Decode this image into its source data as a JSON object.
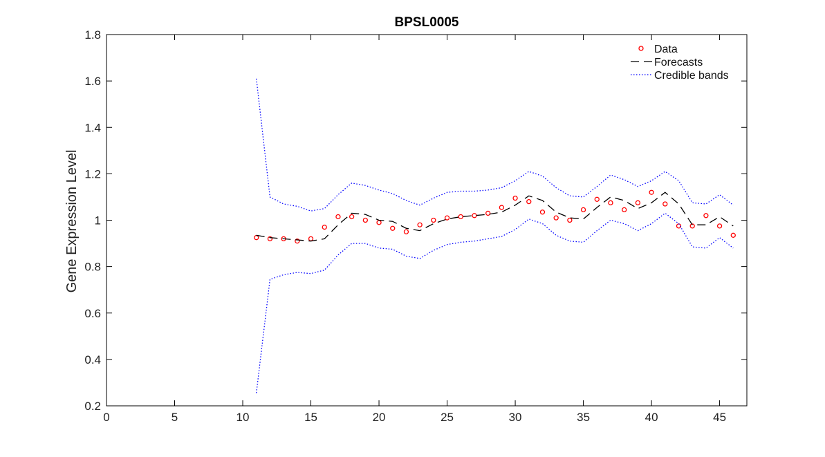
{
  "chart_data": {
    "type": "line",
    "title": "BPSL0005",
    "xlabel": "",
    "ylabel": "Gene Expression Level",
    "xlim": [
      0,
      47
    ],
    "ylim": [
      0.2,
      1.8
    ],
    "xticks": [
      0,
      5,
      10,
      15,
      20,
      25,
      30,
      35,
      40,
      45
    ],
    "yticks": [
      0.2,
      0.4,
      0.6,
      0.8,
      1,
      1.2,
      1.4,
      1.6,
      1.8
    ],
    "ytick_labels": [
      "0.2",
      "0.4",
      "0.6",
      "0.8",
      "1",
      "1.2",
      "1.4",
      "1.6",
      "1.8"
    ],
    "legend_position": "top-right",
    "grid": false,
    "x": [
      11,
      12,
      13,
      14,
      15,
      16,
      17,
      18,
      19,
      20,
      21,
      22,
      23,
      24,
      25,
      26,
      27,
      28,
      29,
      30,
      31,
      32,
      33,
      34,
      35,
      36,
      37,
      38,
      39,
      40,
      41,
      42,
      43,
      44,
      45,
      46
    ],
    "series": [
      {
        "name": "Data",
        "style": "markers",
        "color": "#ff0000",
        "values": [
          0.925,
          0.92,
          0.92,
          0.91,
          0.92,
          0.97,
          1.015,
          1.015,
          1.0,
          0.99,
          0.965,
          0.95,
          0.98,
          1.0,
          1.01,
          1.015,
          1.02,
          1.03,
          1.055,
          1.095,
          1.08,
          1.035,
          1.01,
          1.0,
          1.045,
          1.09,
          1.075,
          1.045,
          1.075,
          1.12,
          1.07,
          0.975,
          0.975,
          1.02,
          0.975,
          0.935
        ]
      },
      {
        "name": "Forecasts",
        "style": "dashed",
        "color": "#000000",
        "values": [
          0.935,
          0.925,
          0.92,
          0.915,
          0.91,
          0.92,
          0.98,
          1.03,
          1.025,
          1.0,
          0.995,
          0.965,
          0.955,
          0.985,
          1.005,
          1.015,
          1.02,
          1.025,
          1.035,
          1.065,
          1.105,
          1.085,
          1.035,
          1.01,
          1.005,
          1.055,
          1.1,
          1.085,
          1.05,
          1.075,
          1.12,
          1.07,
          0.98,
          0.98,
          1.015,
          0.975
        ]
      },
      {
        "name": "Credible bands",
        "style": "dotted",
        "color": "#0000ff",
        "values": [
          1.61,
          1.1,
          1.07,
          1.06,
          1.04,
          1.05,
          1.11,
          1.16,
          1.15,
          1.13,
          1.115,
          1.085,
          1.065,
          1.095,
          1.12,
          1.125,
          1.125,
          1.13,
          1.14,
          1.17,
          1.21,
          1.19,
          1.14,
          1.105,
          1.1,
          1.145,
          1.195,
          1.175,
          1.145,
          1.17,
          1.21,
          1.17,
          1.075,
          1.07,
          1.11,
          1.065
        ]
      },
      {
        "name": "",
        "style": "dotted",
        "color": "#0000ff",
        "values": [
          0.255,
          0.745,
          0.765,
          0.775,
          0.77,
          0.785,
          0.85,
          0.9,
          0.9,
          0.88,
          0.875,
          0.845,
          0.835,
          0.87,
          0.895,
          0.905,
          0.91,
          0.92,
          0.93,
          0.96,
          1.005,
          0.985,
          0.935,
          0.91,
          0.905,
          0.955,
          1.0,
          0.985,
          0.955,
          0.985,
          1.03,
          0.985,
          0.885,
          0.88,
          0.925,
          0.88
        ]
      }
    ]
  }
}
